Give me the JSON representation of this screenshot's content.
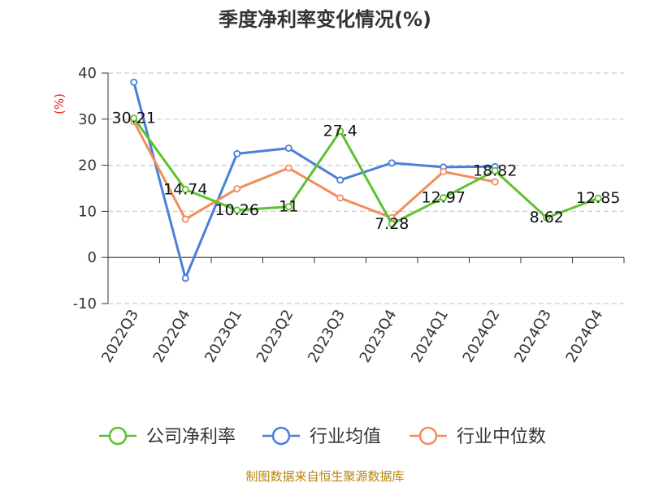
{
  "title": "季度净利率变化情况(%)",
  "source": "制图数据来自恒生聚源数据库",
  "chart_data": {
    "type": "line",
    "ylabel": "(%)",
    "ylim": [
      -10,
      40
    ],
    "yticks": [
      -10,
      0,
      10,
      20,
      30,
      40
    ],
    "grid": "horizontal-dashed",
    "legend_position": "bottom",
    "categories": [
      "2022Q3",
      "2022Q4",
      "2023Q1",
      "2023Q2",
      "2023Q3",
      "2023Q4",
      "2024Q1",
      "2024Q2",
      "2024Q3",
      "2024Q4"
    ],
    "series": [
      {
        "name": "公司净利率",
        "color": "#5ec230",
        "values": [
          30.21,
          14.74,
          10.26,
          11,
          27.4,
          7.28,
          12.97,
          18.82,
          8.62,
          12.85
        ],
        "labels": [
          "30.21",
          "14.74",
          "10.26",
          "11",
          "27.4",
          "7.28",
          "12.97",
          "18.82",
          "8.62",
          "12.85"
        ]
      },
      {
        "name": "行业均值",
        "color": "#4a7fdc",
        "values": [
          38,
          -4.5,
          22.5,
          23.7,
          16.8,
          20.5,
          19.6,
          19.7,
          null,
          null
        ]
      },
      {
        "name": "行业中位数",
        "color": "#f28d5c",
        "values": [
          29.5,
          8.3,
          14.9,
          19.4,
          12.9,
          8.6,
          18.6,
          16.4,
          null,
          null
        ]
      }
    ]
  }
}
